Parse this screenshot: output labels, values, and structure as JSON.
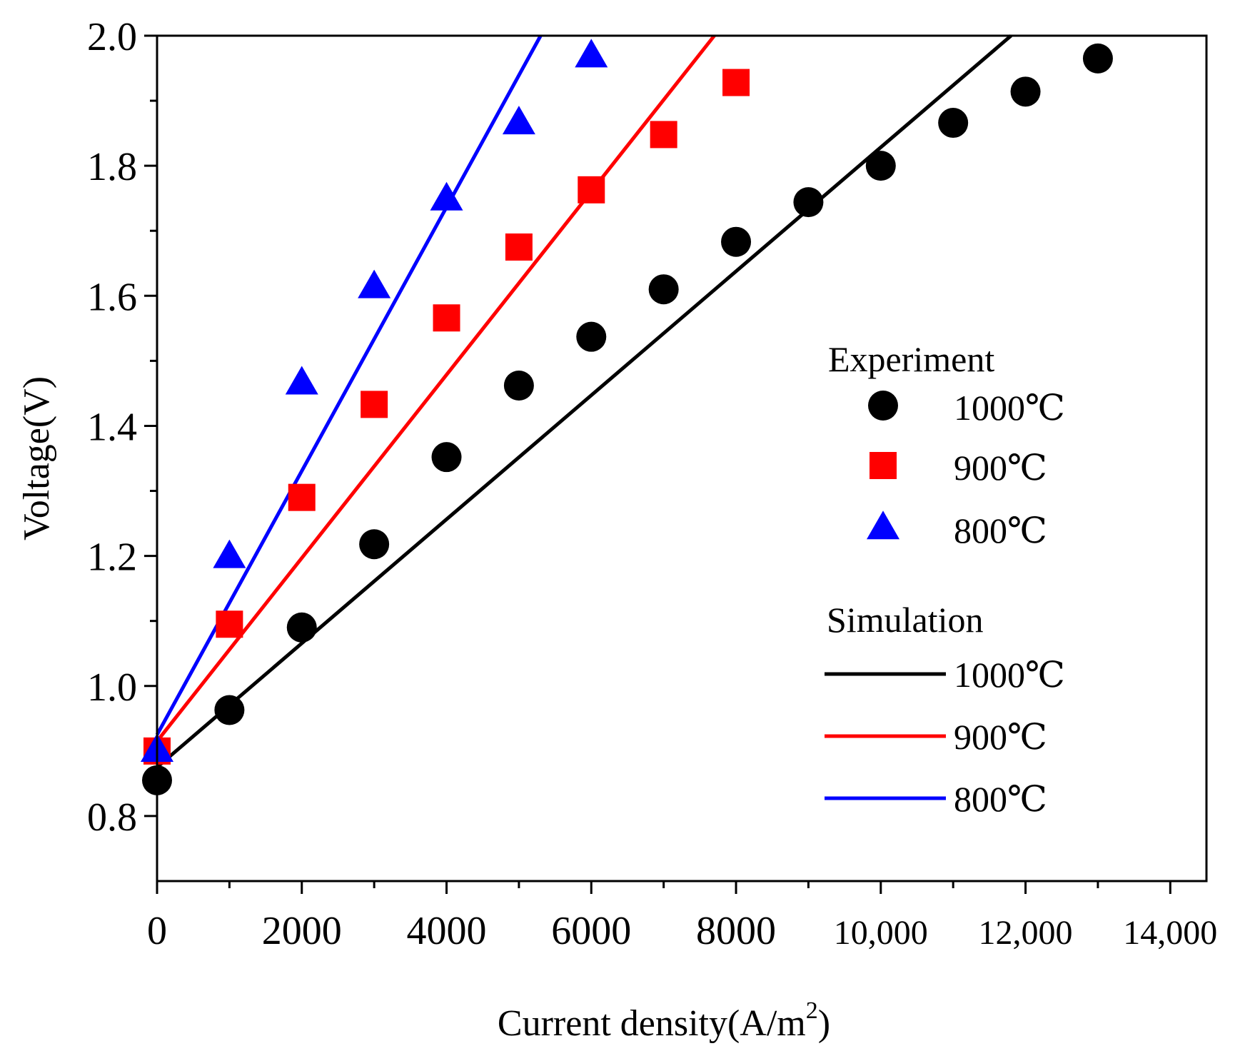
{
  "chart_data": {
    "type": "line",
    "title": "",
    "xlabel_main": "Current density(A/m",
    "xlabel_sup": "2",
    "xlabel_end": ")",
    "ylabel": "Voltage(V)",
    "xlim": [
      0,
      14500
    ],
    "ylim": [
      0.7,
      2.0
    ],
    "x_ticks": [
      {
        "value": 0,
        "label": "0"
      },
      {
        "value": 2000,
        "label": "2000"
      },
      {
        "value": 4000,
        "label": "4000"
      },
      {
        "value": 6000,
        "label": "6000"
      },
      {
        "value": 8000,
        "label": "8000"
      },
      {
        "value": 10000,
        "label": "10,000"
      },
      {
        "value": 12000,
        "label": "12,000"
      },
      {
        "value": 14000,
        "label": "14,000"
      }
    ],
    "y_ticks": [
      {
        "value": 0.8,
        "label": "0.8"
      },
      {
        "value": 1.0,
        "label": "1.0"
      },
      {
        "value": 1.2,
        "label": "1.2"
      },
      {
        "value": 1.4,
        "label": "1.4"
      },
      {
        "value": 1.6,
        "label": "1.6"
      },
      {
        "value": 1.8,
        "label": "1.8"
      },
      {
        "value": 2.0,
        "label": "2.0"
      }
    ],
    "experiment_series": [
      {
        "name": "1000℃",
        "marker": "circle",
        "color": "#000000",
        "x": [
          0,
          1000,
          2000,
          3000,
          4000,
          5000,
          6000,
          7000,
          8000,
          9000,
          10000,
          11000,
          12000,
          13000
        ],
        "y": [
          0.855,
          0.963,
          1.09,
          1.218,
          1.352,
          1.462,
          1.537,
          1.61,
          1.683,
          1.744,
          1.8,
          1.866,
          1.914,
          1.965
        ]
      },
      {
        "name": "900℃",
        "marker": "square",
        "color": "#ff0000",
        "x": [
          0,
          1000,
          2000,
          3000,
          4000,
          5000,
          6000,
          7000,
          8000
        ],
        "y": [
          0.9,
          1.095,
          1.29,
          1.433,
          1.566,
          1.675,
          1.763,
          1.848,
          1.928
        ]
      },
      {
        "name": "800℃",
        "marker": "triangle",
        "color": "#0000ff",
        "x": [
          0,
          1000,
          2000,
          3000,
          4000,
          5000,
          6000
        ],
        "y": [
          0.9,
          1.198,
          1.465,
          1.613,
          1.748,
          1.865,
          1.968
        ]
      }
    ],
    "simulation_series": [
      {
        "name": "1000℃",
        "color": "#000000",
        "x": [
          0,
          11800
        ],
        "y": [
          0.875,
          2.0
        ]
      },
      {
        "name": "900℃",
        "color": "#ff0000",
        "x": [
          0,
          7700
        ],
        "y": [
          0.915,
          2.0
        ]
      },
      {
        "name": "800℃",
        "color": "#0000ff",
        "x": [
          0,
          5300
        ],
        "y": [
          0.925,
          2.0
        ]
      }
    ],
    "legend": {
      "placement": "right",
      "experiment_heading": "Experiment",
      "simulation_heading": "Simulation"
    }
  }
}
